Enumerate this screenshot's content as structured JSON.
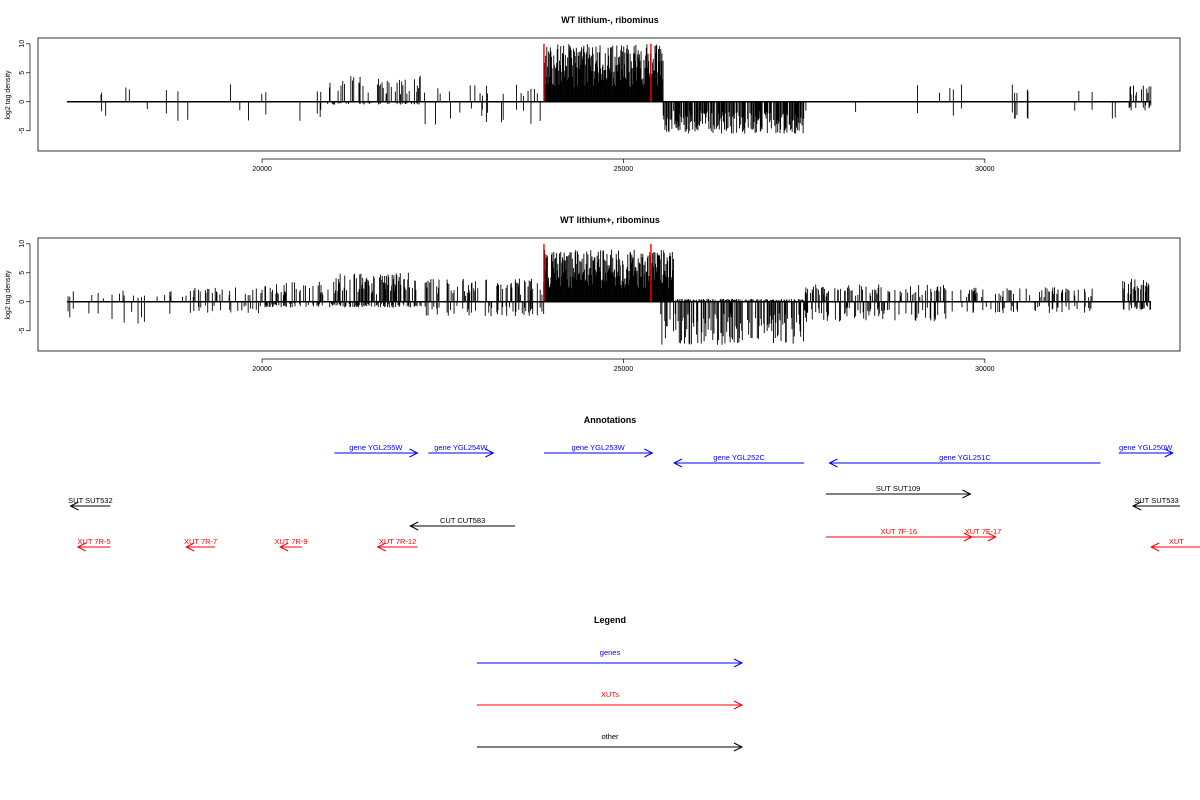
{
  "colors": {
    "gene": "#0000ff",
    "xut": "#ff0000",
    "other": "#000000",
    "boundary": "#ff0000",
    "signal": "#000000"
  },
  "chart_data": [
    {
      "type": "bar",
      "title": "WT lithium-, ribominus",
      "xlabel": "",
      "ylabel": "log2 tag density",
      "xlim": [
        16900,
        32700
      ],
      "ylim": [
        -8.5,
        11
      ],
      "x_ticks": [
        20000,
        25000,
        30000
      ],
      "x_tick_labels": [
        "20000",
        "25000",
        "30000"
      ],
      "y_ticks": [
        -5,
        0,
        5,
        10
      ],
      "y_tick_labels": [
        "-5",
        "0",
        "5",
        "10"
      ],
      "baseline_range": [
        17300,
        32300
      ],
      "boundary_markers": [
        23900,
        25380
      ],
      "segments": [
        {
          "start": 17300,
          "end": 20900,
          "density": 0.04,
          "pos_max": 3,
          "neg_max": 3.5
        },
        {
          "start": 20900,
          "end": 22200,
          "density": 0.45,
          "pos_max": 4.5,
          "neg_max": 0.5
        },
        {
          "start": 22200,
          "end": 23900,
          "density": 0.12,
          "pos_max": 3,
          "neg_max": 4
        },
        {
          "start": 23900,
          "end": 25550,
          "density": 1.0,
          "pos_max": 10,
          "neg_max": 0
        },
        {
          "start": 25550,
          "end": 27500,
          "density": 0.75,
          "pos_max": 0,
          "neg_max": 5.5
        },
        {
          "start": 27500,
          "end": 32000,
          "density": 0.04,
          "pos_max": 3,
          "neg_max": 3
        },
        {
          "start": 32000,
          "end": 32300,
          "density": 0.5,
          "pos_max": 3,
          "neg_max": 1.5
        }
      ]
    },
    {
      "type": "bar",
      "title": "WT lithium+, ribominus",
      "xlabel": "",
      "ylabel": "log2 tag density",
      "xlim": [
        16900,
        32700
      ],
      "ylim": [
        -8.5,
        11
      ],
      "x_ticks": [
        20000,
        25000,
        30000
      ],
      "x_tick_labels": [
        "20000",
        "25000",
        "30000"
      ],
      "y_ticks": [
        -5,
        0,
        5,
        10
      ],
      "y_tick_labels": [
        "-5",
        "0",
        "5",
        "10"
      ],
      "baseline_range": [
        17300,
        32300
      ],
      "boundary_markers": [
        23900,
        25380
      ],
      "segments": [
        {
          "start": 17300,
          "end": 19000,
          "density": 0.15,
          "pos_max": 2,
          "neg_max": 4
        },
        {
          "start": 19000,
          "end": 20000,
          "density": 0.35,
          "pos_max": 2.5,
          "neg_max": 2
        },
        {
          "start": 20000,
          "end": 21000,
          "density": 0.6,
          "pos_max": 3.5,
          "neg_max": 1
        },
        {
          "start": 21000,
          "end": 22200,
          "density": 0.75,
          "pos_max": 5,
          "neg_max": 1
        },
        {
          "start": 22200,
          "end": 23900,
          "density": 0.45,
          "pos_max": 4,
          "neg_max": 2.5
        },
        {
          "start": 23900,
          "end": 25700,
          "density": 1.0,
          "pos_max": 9,
          "neg_max": 0
        },
        {
          "start": 25500,
          "end": 27500,
          "density": 0.95,
          "pos_max": 0.5,
          "neg_max": 7.5
        },
        {
          "start": 27500,
          "end": 29500,
          "density": 0.5,
          "pos_max": 3,
          "neg_max": 3.5
        },
        {
          "start": 29500,
          "end": 31500,
          "density": 0.35,
          "pos_max": 2.5,
          "neg_max": 2
        },
        {
          "start": 31900,
          "end": 32300,
          "density": 0.8,
          "pos_max": 4,
          "neg_max": 1.5
        }
      ]
    }
  ],
  "annotations": {
    "title": "Annotations",
    "xlim": [
      16900,
      32700
    ],
    "features": [
      {
        "label": "gene YGL255W",
        "start": 21000,
        "end": 22150,
        "strand": "+",
        "type": "gene",
        "row": 0
      },
      {
        "label": "gene YGL254W",
        "start": 22300,
        "end": 23200,
        "strand": "+",
        "type": "gene",
        "row": 0
      },
      {
        "label": "gene YGL253W",
        "start": 23900,
        "end": 25400,
        "strand": "+",
        "type": "gene",
        "row": 0
      },
      {
        "label": "gene YGL252C",
        "start": 25700,
        "end": 27500,
        "strand": "-",
        "type": "gene",
        "row": 1
      },
      {
        "label": "gene YGL251C",
        "start": 27850,
        "end": 31600,
        "strand": "-",
        "type": "gene",
        "row": 1
      },
      {
        "label": "gene YGL250W",
        "start": 31850,
        "end": 32600,
        "strand": "+",
        "type": "gene",
        "row": 0
      },
      {
        "label": "SUT SUT532",
        "start": 17350,
        "end": 17900,
        "strand": "-",
        "type": "other",
        "row": 3
      },
      {
        "label": "SUT SUT109",
        "start": 27800,
        "end": 29800,
        "strand": "+",
        "type": "other",
        "row": 2
      },
      {
        "label": "SUT SUT533",
        "start": 32050,
        "end": 32700,
        "strand": "-",
        "type": "other",
        "row": 3
      },
      {
        "label": "CUT CUT583",
        "start": 22050,
        "end": 23500,
        "strand": "-",
        "type": "other",
        "row": 4
      },
      {
        "label": "XUT 7R-5",
        "start": 17450,
        "end": 17900,
        "strand": "-",
        "type": "xut",
        "row": 6
      },
      {
        "label": "XUT 7R-7",
        "start": 18950,
        "end": 19350,
        "strand": "-",
        "type": "xut",
        "row": 6
      },
      {
        "label": "XUT 7R-9",
        "start": 20250,
        "end": 20550,
        "strand": "-",
        "type": "xut",
        "row": 6
      },
      {
        "label": "XUT 7R-12",
        "start": 21600,
        "end": 22150,
        "strand": "-",
        "type": "xut",
        "row": 6
      },
      {
        "label": "XUT 7F-16",
        "start": 27800,
        "end": 29820,
        "strand": "+",
        "type": "xut",
        "row": 5
      },
      {
        "label": "XUT 7F-17",
        "start": 29800,
        "end": 30150,
        "strand": "+",
        "type": "xut",
        "row": 5
      },
      {
        "label": "XUT",
        "start": 32300,
        "end": 33000,
        "strand": "-",
        "type": "xut",
        "row": 6
      }
    ]
  },
  "legend": {
    "title": "Legend",
    "items": [
      {
        "label": "genes",
        "type": "gene"
      },
      {
        "label": "XUTs",
        "type": "xut"
      },
      {
        "label": "other",
        "type": "other"
      }
    ]
  }
}
